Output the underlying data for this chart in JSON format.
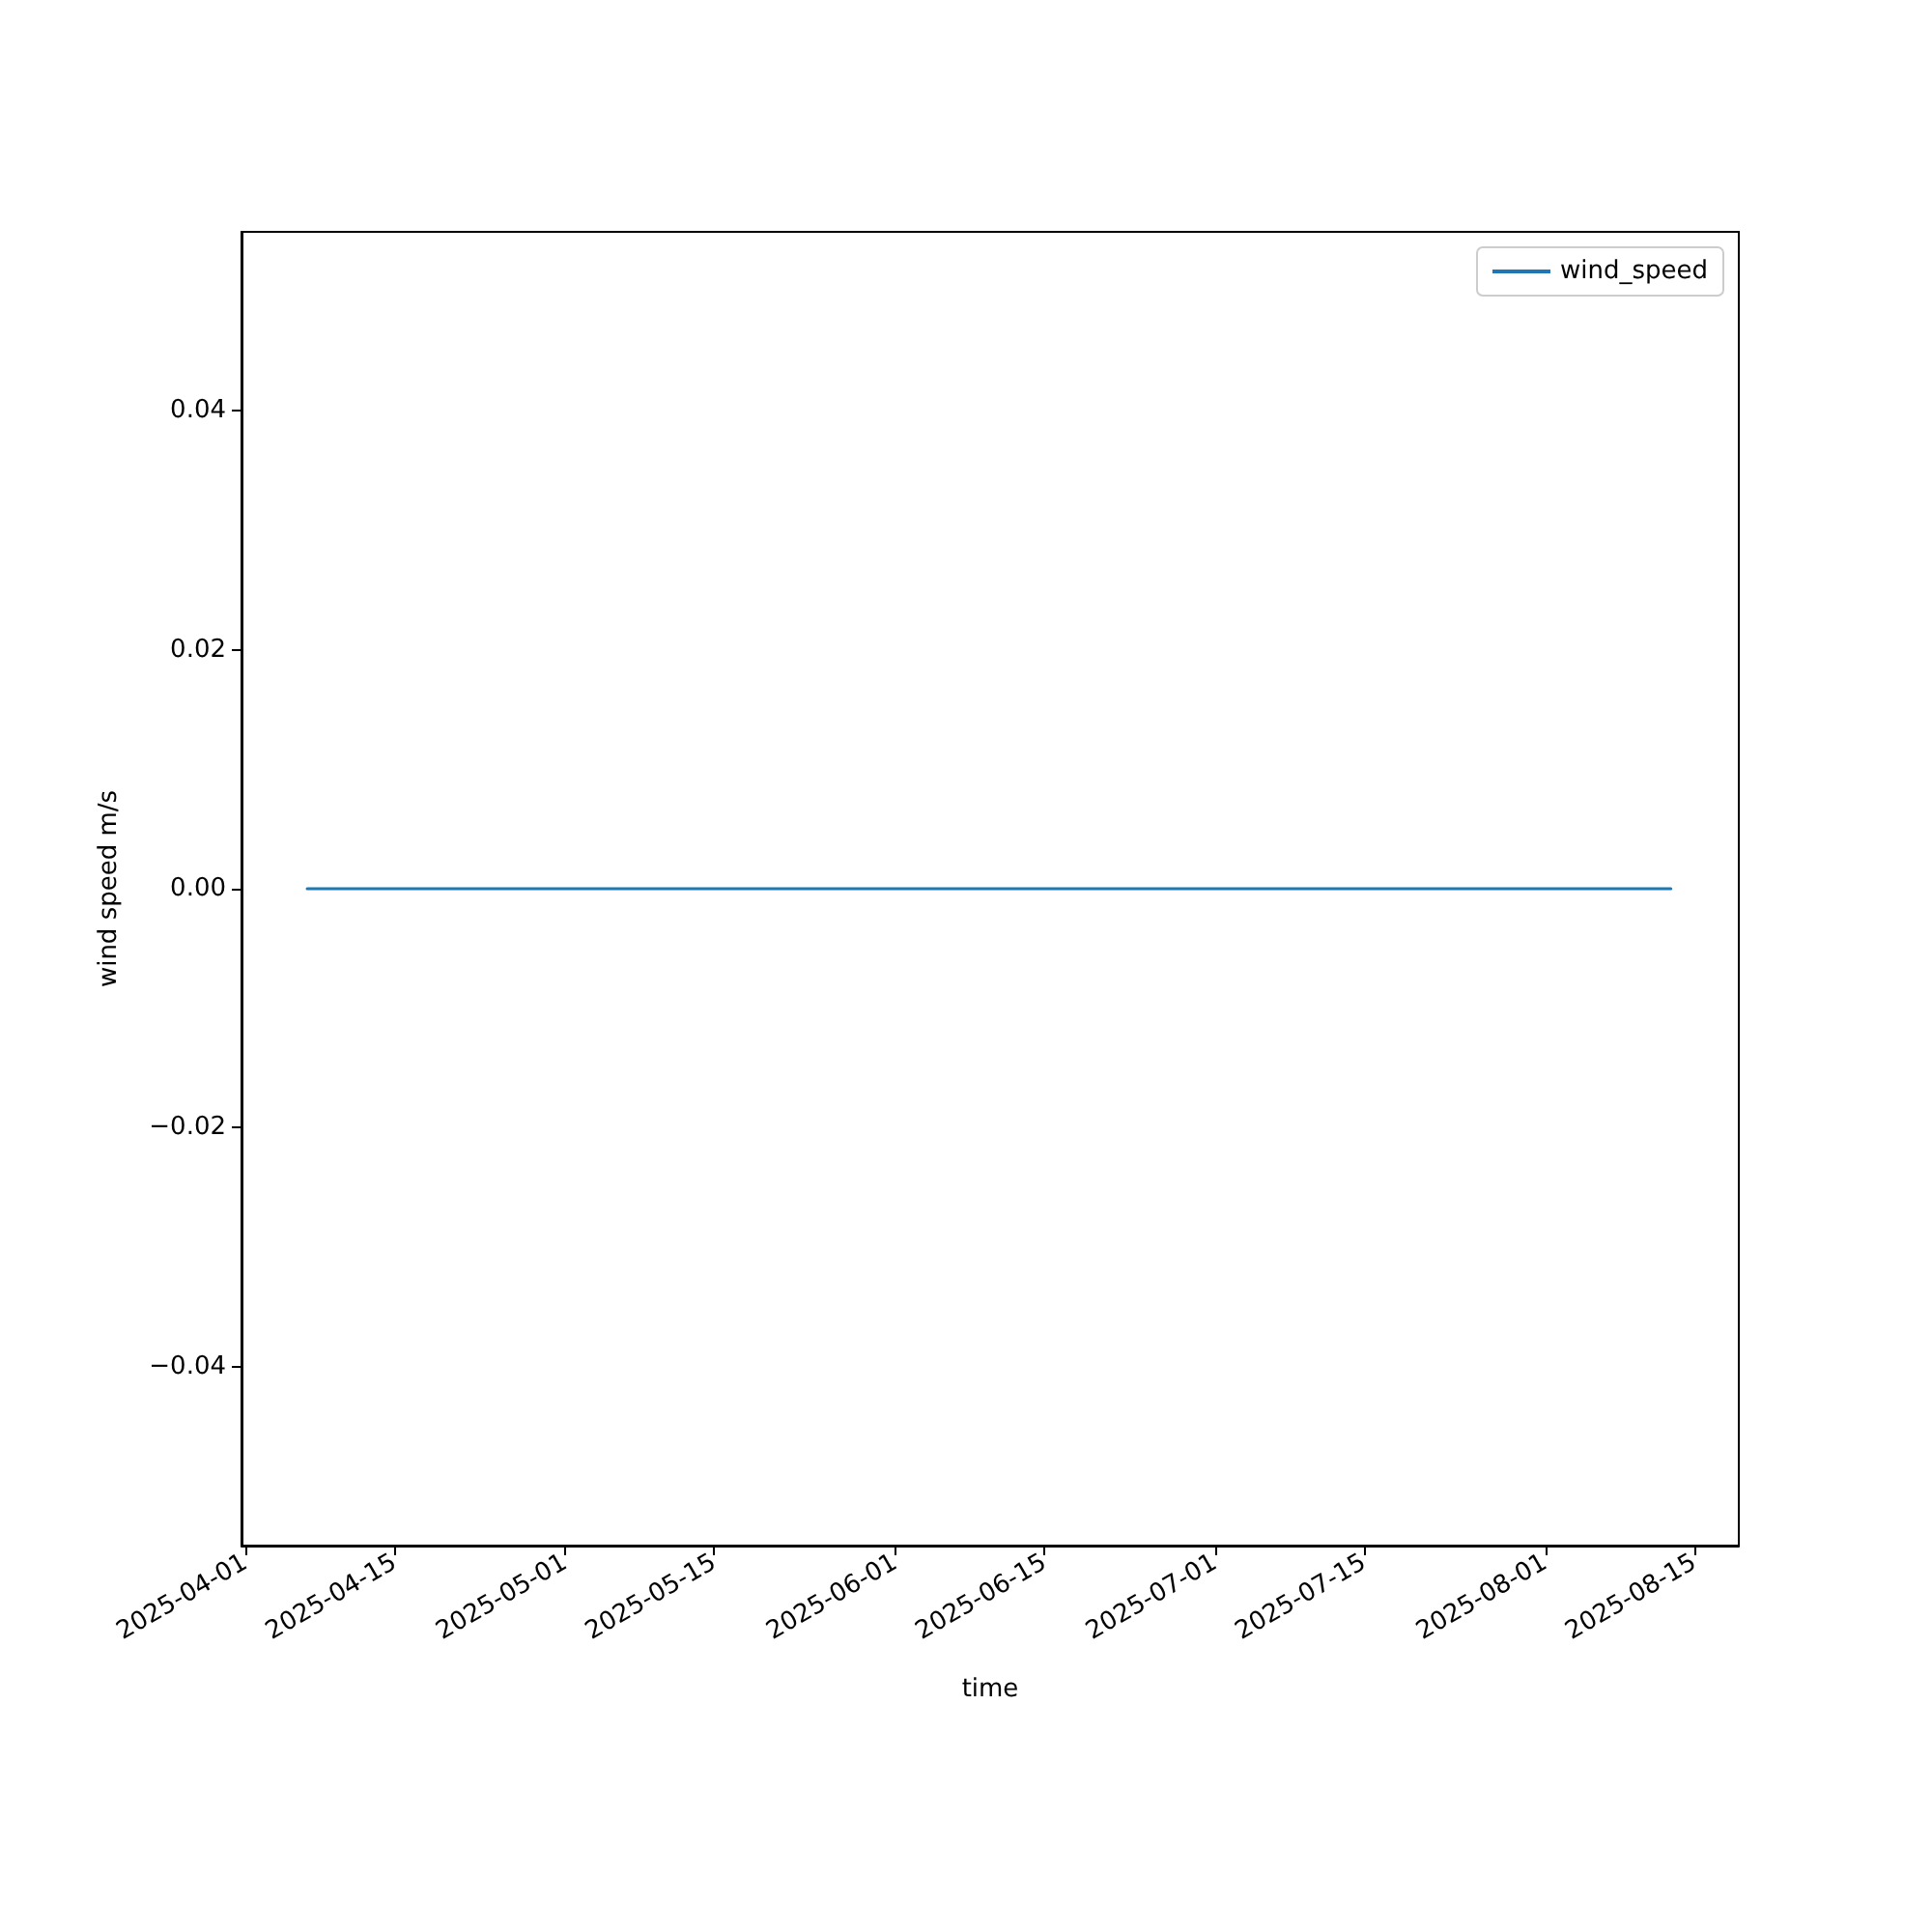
{
  "chart_data": {
    "type": "line",
    "xlabel": "time",
    "ylabel": "wind speed m/s",
    "x": [
      "2025-04-06T19:00",
      "2025-08-12T19:00"
    ],
    "series": [
      {
        "name": "wind_speed",
        "color": "#1f77b4",
        "values": [
          0,
          0
        ]
      }
    ],
    "xlim": [
      "2025-03-31T15:00",
      "2025-08-19T04:00"
    ],
    "xticks": [
      "2025-04-01",
      "2025-04-15",
      "2025-05-01",
      "2025-05-15",
      "2025-06-01",
      "2025-06-15",
      "2025-07-01",
      "2025-07-15",
      "2025-08-01",
      "2025-08-15"
    ],
    "ylim": [
      -0.055,
      0.055
    ],
    "yticks": [
      {
        "value": -0.04,
        "label": "−0.04"
      },
      {
        "value": -0.02,
        "label": "−0.02"
      },
      {
        "value": 0,
        "label": "0.00"
      },
      {
        "value": 0.02,
        "label": "0.02"
      },
      {
        "value": 0.04,
        "label": "0.04"
      }
    ],
    "grid": false,
    "legend": "top right",
    "marker": "none",
    "line_style": "solid"
  }
}
